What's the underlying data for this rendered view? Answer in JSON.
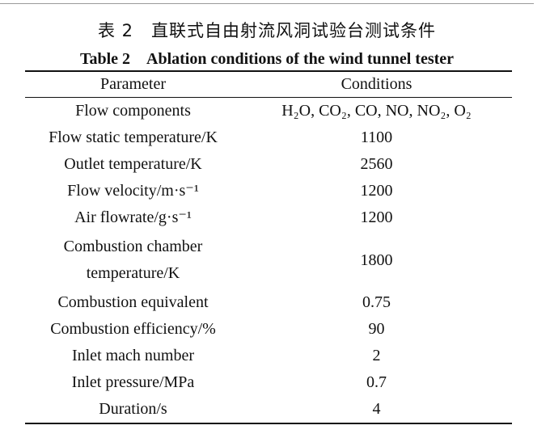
{
  "caption": {
    "cn": "表 2　直联式自由射流风洞试验台测试条件",
    "en": "Table 2　Ablation conditions of the wind tunnel tester"
  },
  "table": {
    "header": [
      "Parameter",
      "Conditions"
    ],
    "rows": [
      [
        "Flow components",
        "H₂O, CO₂, CO, NO, NO₂, O₂"
      ],
      [
        "Flow static temperature/K",
        "1100"
      ],
      [
        "Outlet temperature/K",
        "2560"
      ],
      [
        "Flow velocity/m·s⁻¹",
        "1200"
      ],
      [
        "Air flowrate/g·s⁻¹",
        "1200"
      ],
      [
        "Combustion chamber\ntemperature/K",
        "1800"
      ],
      [
        "Combustion equivalent",
        "0.75"
      ],
      [
        "Combustion efficiency/%",
        "90"
      ],
      [
        "Inlet mach number",
        "2"
      ],
      [
        "Inlet pressure/MPa",
        "0.7"
      ],
      [
        "Duration/s",
        "4"
      ]
    ]
  }
}
